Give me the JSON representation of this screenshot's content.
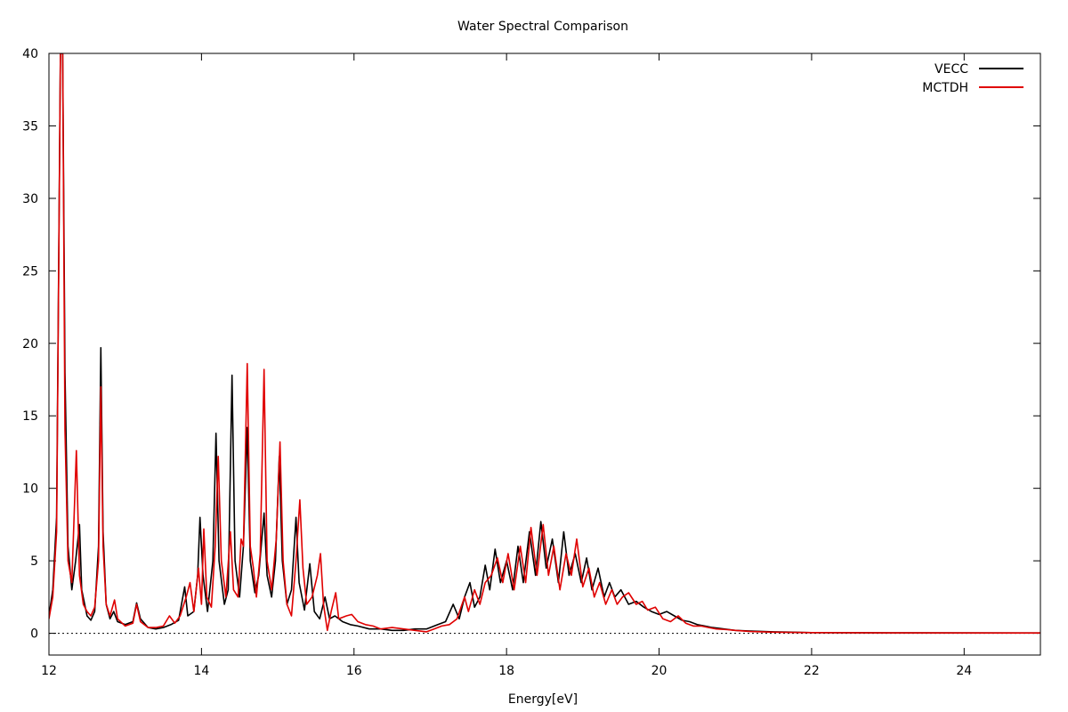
{
  "chart_data": {
    "type": "line",
    "title": "Water Spectral Comparison",
    "xlabel": "Energy[eV]",
    "ylabel": "",
    "xlim": [
      12,
      25
    ],
    "ylim": [
      -1.5,
      40
    ],
    "xticks": [
      12,
      14,
      16,
      18,
      20,
      22,
      24
    ],
    "yticks": [
      0,
      5,
      10,
      15,
      20,
      25,
      30,
      35,
      40
    ],
    "zero_line": true,
    "legend_position": "top-right",
    "series": [
      {
        "name": "VECC",
        "color": "#000000",
        "points": [
          [
            12.0,
            1.2
          ],
          [
            12.05,
            3.0
          ],
          [
            12.1,
            8.0
          ],
          [
            12.15,
            40
          ],
          [
            12.18,
            40
          ],
          [
            12.21,
            18
          ],
          [
            12.25,
            6.0
          ],
          [
            12.3,
            3.0
          ],
          [
            12.35,
            5.0
          ],
          [
            12.4,
            7.5
          ],
          [
            12.43,
            3.0
          ],
          [
            12.5,
            1.2
          ],
          [
            12.55,
            0.9
          ],
          [
            12.6,
            1.5
          ],
          [
            12.65,
            6.0
          ],
          [
            12.68,
            19.7
          ],
          [
            12.71,
            7.0
          ],
          [
            12.75,
            2.0
          ],
          [
            12.8,
            1.0
          ],
          [
            12.85,
            1.5
          ],
          [
            12.9,
            0.8
          ],
          [
            13.0,
            0.6
          ],
          [
            13.1,
            0.8
          ],
          [
            13.15,
            2.1
          ],
          [
            13.2,
            1.0
          ],
          [
            13.3,
            0.4
          ],
          [
            13.4,
            0.3
          ],
          [
            13.5,
            0.4
          ],
          [
            13.6,
            0.6
          ],
          [
            13.7,
            0.9
          ],
          [
            13.78,
            3.2
          ],
          [
            13.82,
            1.2
          ],
          [
            13.9,
            1.5
          ],
          [
            13.95,
            4.0
          ],
          [
            13.98,
            8.0
          ],
          [
            14.02,
            4.0
          ],
          [
            14.08,
            1.5
          ],
          [
            14.15,
            5.0
          ],
          [
            14.19,
            13.8
          ],
          [
            14.23,
            5.0
          ],
          [
            14.3,
            2.0
          ],
          [
            14.35,
            3.0
          ],
          [
            14.4,
            17.8
          ],
          [
            14.44,
            5.0
          ],
          [
            14.5,
            2.5
          ],
          [
            14.55,
            6.0
          ],
          [
            14.6,
            14.2
          ],
          [
            14.64,
            5.0
          ],
          [
            14.7,
            2.8
          ],
          [
            14.75,
            4.0
          ],
          [
            14.82,
            8.3
          ],
          [
            14.86,
            4.0
          ],
          [
            14.92,
            2.5
          ],
          [
            14.97,
            5.0
          ],
          [
            15.02,
            12.2
          ],
          [
            15.06,
            5.0
          ],
          [
            15.12,
            2.0
          ],
          [
            15.18,
            3.0
          ],
          [
            15.24,
            8.0
          ],
          [
            15.28,
            3.5
          ],
          [
            15.35,
            1.6
          ],
          [
            15.42,
            4.8
          ],
          [
            15.48,
            1.5
          ],
          [
            15.55,
            1.0
          ],
          [
            15.62,
            2.5
          ],
          [
            15.68,
            1.0
          ],
          [
            15.75,
            1.2
          ],
          [
            15.85,
            0.8
          ],
          [
            15.95,
            0.6
          ],
          [
            16.05,
            0.5
          ],
          [
            16.2,
            0.3
          ],
          [
            16.35,
            0.3
          ],
          [
            16.5,
            0.2
          ],
          [
            16.65,
            0.2
          ],
          [
            16.8,
            0.3
          ],
          [
            16.95,
            0.3
          ],
          [
            17.1,
            0.6
          ],
          [
            17.2,
            0.8
          ],
          [
            17.3,
            2.0
          ],
          [
            17.38,
            1.0
          ],
          [
            17.45,
            2.5
          ],
          [
            17.52,
            3.5
          ],
          [
            17.58,
            1.8
          ],
          [
            17.65,
            2.5
          ],
          [
            17.72,
            4.7
          ],
          [
            17.78,
            3.0
          ],
          [
            17.85,
            5.8
          ],
          [
            17.92,
            3.5
          ],
          [
            18.0,
            5.0
          ],
          [
            18.08,
            3.0
          ],
          [
            18.15,
            6.0
          ],
          [
            18.22,
            3.5
          ],
          [
            18.3,
            7.0
          ],
          [
            18.38,
            4.0
          ],
          [
            18.45,
            7.7
          ],
          [
            18.52,
            4.5
          ],
          [
            18.6,
            6.5
          ],
          [
            18.68,
            3.5
          ],
          [
            18.75,
            7.0
          ],
          [
            18.82,
            4.0
          ],
          [
            18.9,
            5.5
          ],
          [
            18.98,
            3.5
          ],
          [
            19.05,
            5.2
          ],
          [
            19.12,
            3.0
          ],
          [
            19.2,
            4.5
          ],
          [
            19.28,
            2.5
          ],
          [
            19.35,
            3.5
          ],
          [
            19.42,
            2.5
          ],
          [
            19.5,
            3.0
          ],
          [
            19.6,
            2.0
          ],
          [
            19.7,
            2.2
          ],
          [
            19.8,
            1.8
          ],
          [
            19.9,
            1.5
          ],
          [
            20.0,
            1.3
          ],
          [
            20.1,
            1.5
          ],
          [
            20.2,
            1.2
          ],
          [
            20.3,
            0.9
          ],
          [
            20.4,
            0.8
          ],
          [
            20.5,
            0.6
          ],
          [
            20.6,
            0.5
          ],
          [
            20.7,
            0.4
          ],
          [
            20.85,
            0.3
          ],
          [
            21.0,
            0.2
          ],
          [
            21.2,
            0.15
          ],
          [
            21.5,
            0.1
          ],
          [
            22.0,
            0.05
          ],
          [
            23.0,
            0.03
          ],
          [
            25.0,
            0.02
          ]
        ]
      },
      {
        "name": "MCTDH",
        "color": "#e00000",
        "points": [
          [
            12.0,
            1.0
          ],
          [
            12.05,
            2.5
          ],
          [
            12.1,
            7.0
          ],
          [
            12.15,
            40
          ],
          [
            12.18,
            40
          ],
          [
            12.21,
            14
          ],
          [
            12.25,
            5.0
          ],
          [
            12.3,
            3.5
          ],
          [
            12.36,
            12.6
          ],
          [
            12.4,
            4.0
          ],
          [
            12.45,
            2.0
          ],
          [
            12.5,
            1.5
          ],
          [
            12.55,
            1.2
          ],
          [
            12.6,
            1.8
          ],
          [
            12.65,
            5.0
          ],
          [
            12.68,
            17.0
          ],
          [
            12.71,
            6.0
          ],
          [
            12.75,
            2.0
          ],
          [
            12.8,
            1.2
          ],
          [
            12.86,
            2.3
          ],
          [
            12.9,
            1.0
          ],
          [
            13.0,
            0.5
          ],
          [
            13.1,
            0.7
          ],
          [
            13.15,
            2.0
          ],
          [
            13.2,
            0.8
          ],
          [
            13.3,
            0.4
          ],
          [
            13.4,
            0.4
          ],
          [
            13.5,
            0.5
          ],
          [
            13.58,
            1.2
          ],
          [
            13.65,
            0.7
          ],
          [
            13.72,
            1.2
          ],
          [
            13.8,
            2.5
          ],
          [
            13.85,
            3.5
          ],
          [
            13.9,
            1.5
          ],
          [
            13.96,
            4.5
          ],
          [
            14.0,
            2.0
          ],
          [
            14.03,
            7.2
          ],
          [
            14.07,
            2.5
          ],
          [
            14.13,
            1.8
          ],
          [
            14.18,
            6.0
          ],
          [
            14.22,
            12.2
          ],
          [
            14.26,
            5.0
          ],
          [
            14.32,
            2.5
          ],
          [
            14.38,
            7.0
          ],
          [
            14.42,
            3.0
          ],
          [
            14.48,
            2.5
          ],
          [
            14.52,
            6.5
          ],
          [
            14.55,
            6.0
          ],
          [
            14.6,
            18.6
          ],
          [
            14.64,
            6.0
          ],
          [
            14.68,
            4.5
          ],
          [
            14.72,
            2.5
          ],
          [
            14.77,
            5.5
          ],
          [
            14.82,
            18.2
          ],
          [
            14.86,
            5.0
          ],
          [
            14.92,
            3.0
          ],
          [
            14.98,
            6.5
          ],
          [
            15.03,
            13.2
          ],
          [
            15.07,
            5.0
          ],
          [
            15.12,
            2.0
          ],
          [
            15.18,
            1.2
          ],
          [
            15.24,
            5.0
          ],
          [
            15.29,
            9.2
          ],
          [
            15.33,
            4.5
          ],
          [
            15.38,
            2.0
          ],
          [
            15.45,
            2.5
          ],
          [
            15.52,
            4.0
          ],
          [
            15.56,
            5.5
          ],
          [
            15.6,
            2.0
          ],
          [
            15.65,
            0.2
          ],
          [
            15.7,
            1.5
          ],
          [
            15.76,
            2.8
          ],
          [
            15.8,
            1.0
          ],
          [
            15.9,
            1.2
          ],
          [
            15.97,
            1.3
          ],
          [
            16.05,
            0.8
          ],
          [
            16.15,
            0.6
          ],
          [
            16.25,
            0.5
          ],
          [
            16.35,
            0.3
          ],
          [
            16.5,
            0.4
          ],
          [
            16.65,
            0.3
          ],
          [
            16.8,
            0.2
          ],
          [
            16.95,
            0.1
          ],
          [
            17.05,
            0.3
          ],
          [
            17.15,
            0.5
          ],
          [
            17.25,
            0.6
          ],
          [
            17.35,
            1.0
          ],
          [
            17.45,
            2.5
          ],
          [
            17.5,
            1.5
          ],
          [
            17.58,
            3.0
          ],
          [
            17.65,
            2.0
          ],
          [
            17.72,
            3.5
          ],
          [
            17.8,
            4.0
          ],
          [
            17.88,
            5.2
          ],
          [
            17.95,
            3.5
          ],
          [
            18.02,
            5.5
          ],
          [
            18.1,
            3.0
          ],
          [
            18.18,
            6.0
          ],
          [
            18.25,
            3.5
          ],
          [
            18.32,
            7.3
          ],
          [
            18.4,
            4.0
          ],
          [
            18.48,
            7.5
          ],
          [
            18.55,
            4.0
          ],
          [
            18.62,
            6.0
          ],
          [
            18.7,
            3.0
          ],
          [
            18.78,
            5.5
          ],
          [
            18.85,
            4.0
          ],
          [
            18.92,
            6.5
          ],
          [
            19.0,
            3.2
          ],
          [
            19.08,
            4.5
          ],
          [
            19.15,
            2.5
          ],
          [
            19.22,
            3.5
          ],
          [
            19.3,
            2.0
          ],
          [
            19.38,
            3.0
          ],
          [
            19.45,
            2.0
          ],
          [
            19.52,
            2.5
          ],
          [
            19.6,
            2.8
          ],
          [
            19.7,
            2.0
          ],
          [
            19.78,
            2.2
          ],
          [
            19.85,
            1.6
          ],
          [
            19.95,
            1.8
          ],
          [
            20.05,
            1.0
          ],
          [
            20.15,
            0.8
          ],
          [
            20.25,
            1.2
          ],
          [
            20.35,
            0.7
          ],
          [
            20.45,
            0.5
          ],
          [
            20.55,
            0.5
          ],
          [
            20.65,
            0.4
          ],
          [
            20.75,
            0.3
          ],
          [
            20.9,
            0.25
          ],
          [
            21.0,
            0.2
          ],
          [
            21.2,
            0.12
          ],
          [
            21.5,
            0.08
          ],
          [
            22.0,
            0.05
          ],
          [
            23.0,
            0.03
          ],
          [
            25.0,
            0.02
          ]
        ]
      }
    ]
  }
}
